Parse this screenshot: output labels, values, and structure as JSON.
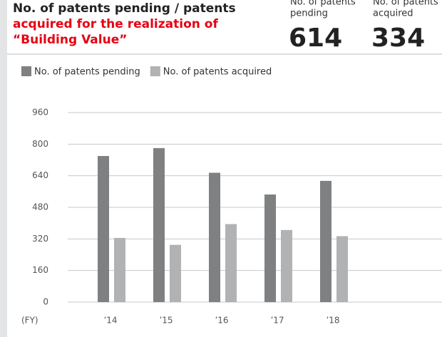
{
  "header": {
    "stats": [
      {
        "label": [
          "No. of patents",
          "pending"
        ],
        "value": 614
      },
      {
        "label": [
          "No. of patents",
          "acquired"
        ],
        "value": 334
      }
    ]
  },
  "chart_data": {
    "type": "bar",
    "title": [
      "No. of patents pending / patents",
      "acquired for the realization of",
      "“Building Value”"
    ],
    "x_label": "(FY)",
    "categories": [
      "’14",
      "’15",
      "’16",
      "’17",
      "’18"
    ],
    "series": [
      {
        "name": "No. of patents pending",
        "color": "#7f8082",
        "values": [
          740,
          780,
          655,
          545,
          614
        ]
      },
      {
        "name": "No. of patents acquired",
        "color": "#b1b2b4",
        "values": [
          325,
          290,
          395,
          365,
          334
        ]
      }
    ],
    "ylim": [
      0,
      960
    ],
    "yticks": [
      0,
      160,
      320,
      480,
      640,
      800,
      960
    ],
    "grid": true
  }
}
